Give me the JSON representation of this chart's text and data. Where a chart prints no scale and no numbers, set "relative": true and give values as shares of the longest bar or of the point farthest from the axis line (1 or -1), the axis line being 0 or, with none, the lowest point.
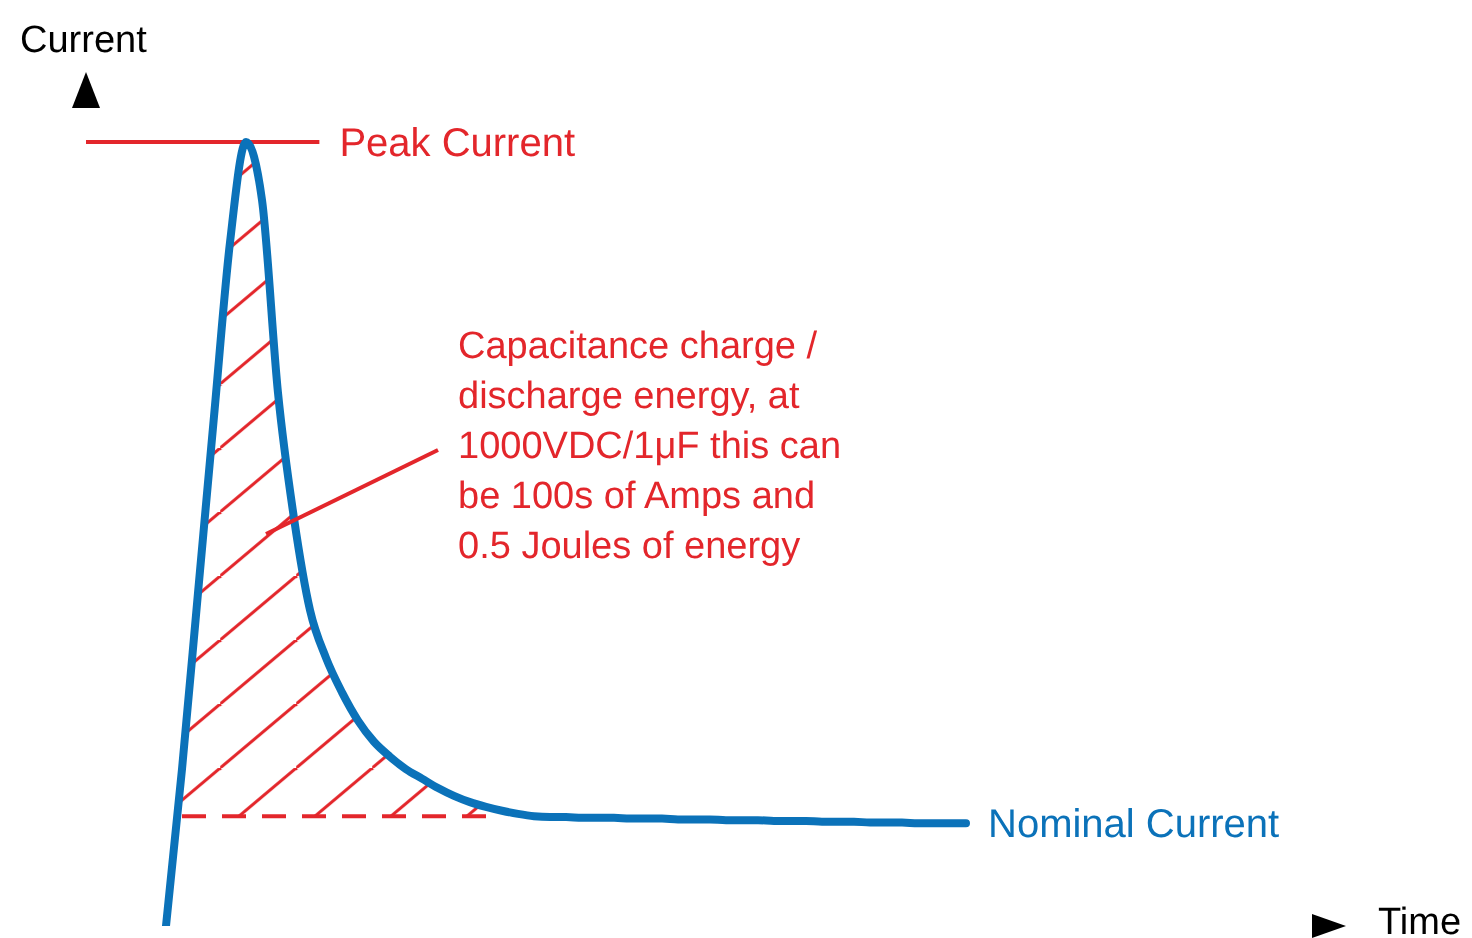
{
  "chart_data": {
    "type": "line",
    "xlabel": "Time",
    "ylabel": "Current",
    "relative": true,
    "marker": "none",
    "line_style": "solid",
    "categories": [
      null,
      null,
      null,
      null,
      null,
      null,
      null,
      null,
      null,
      null,
      null,
      null,
      null,
      null,
      null,
      null,
      null,
      null,
      null,
      null,
      null,
      null,
      null,
      null,
      null,
      null,
      null,
      null,
      null,
      null,
      null,
      null,
      null,
      null,
      null,
      null,
      null,
      null,
      null,
      null,
      null,
      null,
      null,
      null,
      null,
      null,
      null,
      null,
      null,
      null,
      null,
      null,
      null,
      null,
      null,
      null,
      null,
      null,
      null,
      null,
      null,
      null,
      null,
      null,
      null,
      null,
      null,
      null,
      null,
      null,
      null,
      null,
      null,
      null,
      null,
      null,
      null,
      null,
      null
    ],
    "series": [
      {
        "name": "Nominal Current",
        "color": "#0b72b9",
        "values": [
          null,
          null,
          null,
          null,
          null,
          0,
          0.2,
          0.425,
          0.65,
          0.872,
          1,
          0.926,
          0.68,
          0.52,
          0.403,
          0.342,
          0.298,
          0.262,
          0.235,
          0.216,
          0.2,
          0.188,
          0.176,
          0.166,
          0.158,
          0.152,
          0.147,
          0.143,
          0.14,
          0.139,
          0.139,
          0.138,
          0.138,
          0.138,
          0.137,
          0.137,
          0.137,
          0.136,
          0.136,
          0.136,
          0.135,
          0.135,
          0.135,
          0.134,
          0.134,
          0.134,
          0.133,
          0.133,
          0.133,
          0.132,
          0.132,
          0.132,
          0.131,
          0.131,
          0.131,
          0.131,
          null,
          null,
          null,
          null,
          null,
          null,
          null,
          null,
          null,
          null,
          null,
          null,
          null,
          null,
          null,
          null,
          null,
          null,
          null,
          null,
          null,
          null,
          null
        ]
      },
      {
        "type": "area",
        "color": "#e3262b",
        "values": [
          null,
          null,
          null,
          null,
          null,
          null,
          0.2,
          0.425,
          0.65,
          0.872,
          1,
          0.926,
          0.68,
          0.52,
          0.403,
          0.342,
          0.298,
          0.262,
          0.235,
          0.216,
          0.2,
          0.188,
          0.176,
          0.166,
          0.158,
          0.152,
          null,
          null,
          null,
          null,
          null,
          null,
          null,
          null,
          null,
          null,
          null,
          null,
          null,
          null,
          null,
          null,
          null,
          null,
          null,
          null,
          null,
          null,
          null,
          null,
          null,
          null,
          null,
          null,
          null,
          null,
          null,
          null,
          null,
          null,
          null,
          null,
          null,
          null,
          null,
          null,
          null,
          null,
          null,
          null,
          null,
          null,
          null,
          null,
          null,
          null,
          null,
          null,
          null
        ]
      }
    ],
    "ref_lines": [
      {
        "axis": "y",
        "value": 1,
        "label": "Peak Current",
        "color": "#e3262b"
      },
      {
        "axis": "y",
        "value": 0.14,
        "color": "#e3262b",
        "line_style": "dashed"
      }
    ],
    "annotations": [
      "Capacitance charge /\ndischarge energy, at\n1000VDC/1μF this can\nbe 100s of Amps and\n0.5 Joules of energy"
    ]
  }
}
